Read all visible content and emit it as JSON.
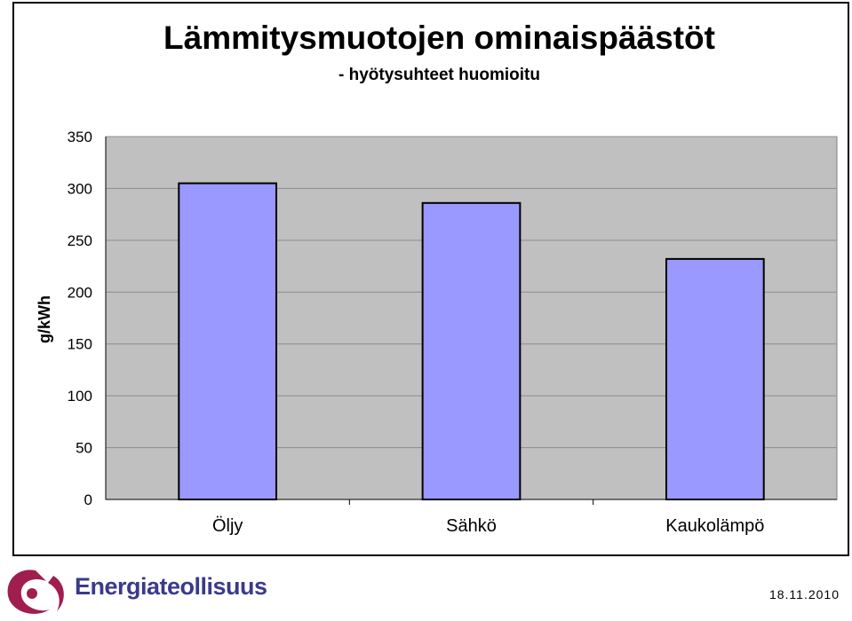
{
  "chart_data": {
    "type": "bar",
    "title": "Lämmitysmuotojen ominaispäästöt",
    "subtitle": "- hyötysuhteet huomioitu",
    "ylabel": "g/kWh",
    "xlabel": "",
    "categories": [
      "Öljy",
      "Sähkö",
      "Kaukolämpö"
    ],
    "values": [
      305,
      286,
      232
    ],
    "ylim": [
      0,
      350
    ],
    "yticks": [
      0,
      50,
      100,
      150,
      200,
      250,
      300,
      350
    ],
    "grid": true,
    "legend": "none",
    "bar_color": "#9999ff",
    "plot_background": "#c0c0c0"
  },
  "footer": {
    "brand": "Energiateollisuus",
    "date": "18.11.2010",
    "logo_color": "#a01e4f",
    "brand_color": "#3a3a8c"
  }
}
